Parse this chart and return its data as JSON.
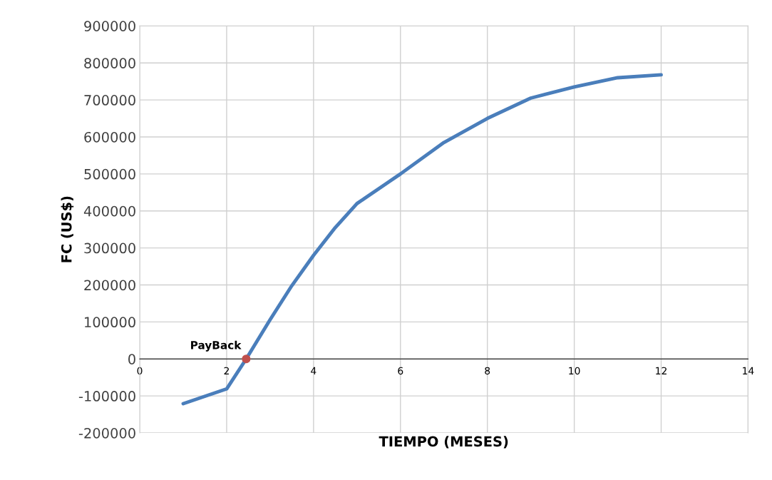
{
  "chart_data": {
    "type": "line",
    "xlabel": "TIEMPO (MESES)",
    "ylabel": "FC (US$)",
    "xlim": [
      0,
      14
    ],
    "xticks": [
      0,
      2,
      4,
      6,
      8,
      10,
      12,
      14
    ],
    "ylim": [
      -200000,
      900000
    ],
    "yticks": [
      -200000,
      -100000,
      0,
      100000,
      200000,
      300000,
      400000,
      500000,
      600000,
      700000,
      800000,
      900000
    ],
    "grid": true,
    "marker": "none",
    "line_style": "solid",
    "series": [
      {
        "color": "#4a7ebb",
        "x": [
          1,
          2,
          2.45,
          3,
          3.5,
          4,
          4.5,
          5,
          6,
          7,
          8,
          9,
          10,
          11,
          12
        ],
        "values": [
          -121000,
          -81000,
          0,
          106000,
          198000,
          280000,
          355000,
          420000,
          500000,
          585000,
          650000,
          705000,
          735000,
          760000,
          768000
        ]
      },
      {
        "type": "scatter",
        "color": "#c0504d",
        "marker": "circle",
        "x": [
          2.45
        ],
        "values": [
          0
        ]
      }
    ],
    "annotations": [
      {
        "text": "PayBack",
        "x": 2.45,
        "y": 0
      }
    ]
  }
}
